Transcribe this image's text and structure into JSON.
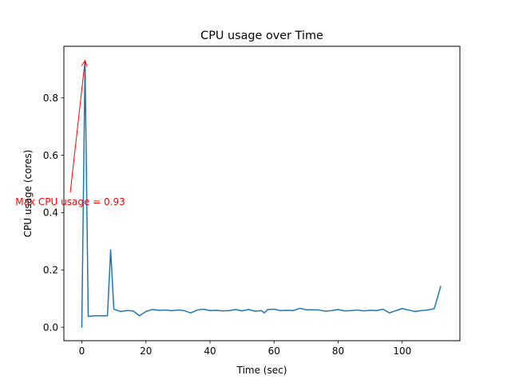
{
  "chart_data": {
    "type": "line",
    "title": "CPU usage over Time",
    "xlabel": "Time (sec)",
    "ylabel": "CPU usage (cores)",
    "xlim": [
      -5.6,
      118
    ],
    "ylim": [
      -0.047,
      0.98
    ],
    "xticks": [
      0,
      20,
      40,
      60,
      80,
      100
    ],
    "xtick_labels": [
      "0",
      "20",
      "40",
      "60",
      "80",
      "100"
    ],
    "yticks": [
      0.0,
      0.2,
      0.4,
      0.6,
      0.8
    ],
    "ytick_labels": [
      "0.0",
      "0.2",
      "0.4",
      "0.6",
      "0.8"
    ],
    "grid": false,
    "series": [
      {
        "color": "#1f77b4",
        "x": [
          0,
          1,
          2,
          4,
          6,
          8,
          9,
          10,
          12,
          14,
          16,
          18,
          20,
          22,
          24,
          26,
          28,
          30,
          32,
          34,
          36,
          38,
          40,
          42,
          44,
          46,
          48,
          50,
          52,
          54,
          56,
          57,
          58,
          60,
          62,
          64,
          66,
          68,
          70,
          72,
          74,
          76,
          78,
          80,
          82,
          84,
          86,
          88,
          90,
          92,
          94,
          96,
          98,
          100,
          102,
          104,
          106,
          108,
          110,
          112
        ],
        "y": [
          0.0,
          0.93,
          0.038,
          0.04,
          0.04,
          0.04,
          0.27,
          0.063,
          0.055,
          0.058,
          0.057,
          0.04,
          0.055,
          0.062,
          0.059,
          0.06,
          0.058,
          0.06,
          0.058,
          0.05,
          0.06,
          0.063,
          0.058,
          0.059,
          0.057,
          0.058,
          0.062,
          0.057,
          0.062,
          0.056,
          0.058,
          0.05,
          0.062,
          0.063,
          0.058,
          0.059,
          0.058,
          0.066,
          0.061,
          0.061,
          0.06,
          0.056,
          0.058,
          0.062,
          0.057,
          0.058,
          0.06,
          0.057,
          0.059,
          0.058,
          0.063,
          0.05,
          0.058,
          0.065,
          0.06,
          0.055,
          0.058,
          0.06,
          0.065,
          0.142
        ]
      }
    ],
    "annotation": {
      "text": "Max CPU usage = 0.93",
      "color": "#ff0000",
      "xy": [
        1,
        0.93
      ],
      "xytext": [
        -3.6,
        0.47
      ]
    }
  }
}
